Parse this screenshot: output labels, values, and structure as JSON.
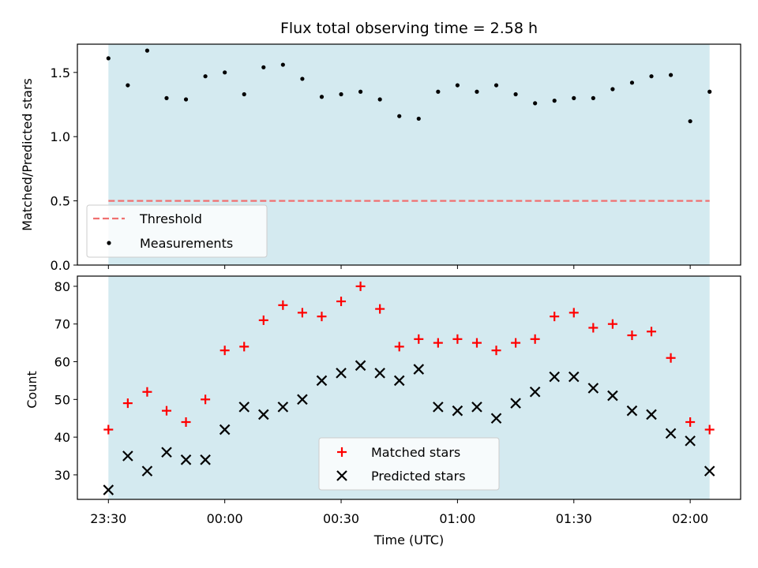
{
  "chart_data": [
    {
      "type": "scatter",
      "title": "Flux total observing time = 2.58 h",
      "xlabel": "",
      "ylabel": "Matched/Predicted stars",
      "ylim": [
        0,
        1.72
      ],
      "yticks": [
        "0.0",
        "0.5",
        "1.0",
        "1.5"
      ],
      "ytick_values": [
        0,
        0.5,
        1.0,
        1.5
      ],
      "shaded_region": {
        "x_start": "23:30",
        "x_end": "02:05",
        "color": "#d4eaf0"
      },
      "series": [
        {
          "name": "Threshold",
          "type": "line",
          "style": "dashed",
          "color": "#f07070",
          "x_minutes": [
            0,
            155
          ],
          "values": [
            0.5,
            0.5
          ]
        },
        {
          "name": "Measurements",
          "type": "scatter",
          "marker": "dot",
          "color": "#000000",
          "x_minutes": [
            0,
            5,
            10,
            15,
            20,
            25,
            30,
            35,
            40,
            45,
            50,
            55,
            60,
            65,
            70,
            75,
            80,
            85,
            90,
            95,
            100,
            105,
            110,
            115,
            120,
            125,
            130,
            135,
            140,
            145,
            150,
            155
          ],
          "values": [
            1.61,
            1.4,
            1.67,
            1.3,
            1.29,
            1.47,
            1.5,
            1.33,
            1.54,
            1.56,
            1.45,
            1.31,
            1.33,
            1.35,
            1.29,
            1.16,
            1.14,
            1.35,
            1.4,
            1.35,
            1.4,
            1.33,
            1.26,
            1.28,
            1.3,
            1.3,
            1.37,
            1.42,
            1.47,
            1.48,
            1.12,
            1.35
          ]
        }
      ],
      "legend": {
        "placement": "lower-left"
      }
    },
    {
      "type": "scatter",
      "xlabel": "Time (UTC)",
      "ylabel": "Count",
      "ylim": [
        23.5,
        82.7
      ],
      "yticks": [
        "30",
        "40",
        "50",
        "60",
        "70",
        "80"
      ],
      "ytick_values": [
        30,
        40,
        50,
        60,
        70,
        80
      ],
      "xticks": [
        "23:30",
        "00:00",
        "00:30",
        "01:00",
        "01:30",
        "02:00"
      ],
      "xtick_minutes": [
        0,
        30,
        60,
        90,
        120,
        150
      ],
      "xlim_minutes": [
        -8,
        163
      ],
      "shaded_region": {
        "x_start": "23:30",
        "x_end": "02:05",
        "color": "#d4eaf0"
      },
      "series": [
        {
          "name": "Matched stars",
          "marker": "plus",
          "color": "#ff0000",
          "x_minutes": [
            0,
            5,
            10,
            15,
            20,
            25,
            30,
            35,
            40,
            45,
            50,
            55,
            60,
            65,
            70,
            75,
            80,
            85,
            90,
            95,
            100,
            105,
            110,
            115,
            120,
            125,
            130,
            135,
            140,
            145,
            150,
            155
          ],
          "values": [
            42,
            49,
            52,
            47,
            44,
            50,
            63,
            64,
            71,
            75,
            73,
            72,
            76,
            80,
            74,
            64,
            66,
            65,
            66,
            65,
            63,
            65,
            66,
            72,
            73,
            69,
            70,
            67,
            68,
            61,
            44,
            42
          ]
        },
        {
          "name": "Predicted stars",
          "marker": "x",
          "color": "#000000",
          "x_minutes": [
            0,
            5,
            10,
            15,
            20,
            25,
            30,
            35,
            40,
            45,
            50,
            55,
            60,
            65,
            70,
            75,
            80,
            85,
            90,
            95,
            100,
            105,
            110,
            115,
            120,
            125,
            130,
            135,
            140,
            145,
            150,
            155
          ],
          "values": [
            26,
            35,
            31,
            36,
            34,
            34,
            42,
            48,
            46,
            48,
            50,
            55,
            57,
            59,
            57,
            55,
            58,
            48,
            47,
            48,
            45,
            49,
            52,
            56,
            56,
            53,
            51,
            47,
            46,
            41,
            39,
            31
          ]
        }
      ],
      "legend": {
        "placement": "lower-center"
      }
    }
  ]
}
